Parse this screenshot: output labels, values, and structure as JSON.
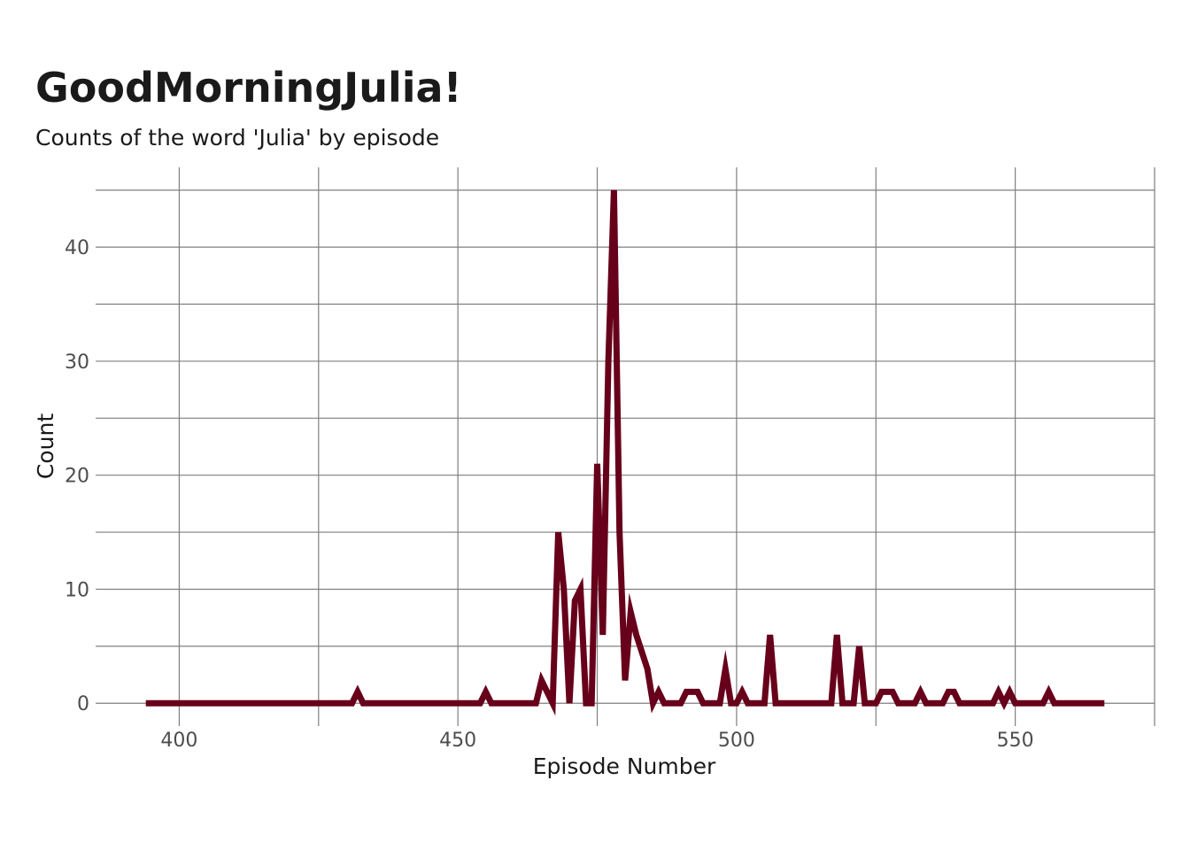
{
  "title": "GoodMorningJulia!",
  "subtitle": "Counts of the word 'Julia' by episode",
  "colors": {
    "line": "#67001a",
    "grid": "#7f7f7f",
    "tick_text": "#4d4d4d",
    "text": "#1a1a1a",
    "background": "#ffffff"
  },
  "chart_data": {
    "type": "line",
    "title": "GoodMorningJulia!",
    "subtitle": "Counts of the word 'Julia' by episode",
    "xlabel": "Episode Number",
    "ylabel": "Count",
    "xlim": [
      385,
      575
    ],
    "ylim": [
      -2,
      47
    ],
    "x_ticks": [
      400,
      450,
      500,
      550
    ],
    "x_minor_ticks": [
      425,
      475,
      525,
      575
    ],
    "y_ticks": [
      0,
      10,
      20,
      30,
      40
    ],
    "y_minor_ticks": [
      5,
      15,
      25,
      35,
      45
    ],
    "grid": true,
    "legend": "none",
    "series": [
      {
        "x": [
          394,
          431,
          432,
          433,
          454,
          455,
          456,
          464,
          465,
          467,
          468,
          469,
          470,
          471,
          472,
          473,
          474,
          475,
          476,
          477,
          478,
          479,
          480,
          481,
          482,
          484,
          485,
          486,
          487,
          490,
          491,
          493,
          494,
          497,
          498,
          499,
          500,
          501,
          502,
          505,
          506,
          507,
          517,
          518,
          519,
          521,
          522,
          523,
          525,
          526,
          528,
          529,
          532,
          533,
          534,
          537,
          538,
          539,
          540,
          546,
          547,
          548,
          549,
          550,
          555,
          556,
          557,
          566
        ],
        "y": [
          0,
          0,
          1,
          0,
          0,
          1,
          0,
          0,
          2,
          0,
          15,
          10,
          0,
          9,
          10,
          0,
          0,
          21,
          6,
          30,
          45,
          15,
          2,
          8,
          6,
          3,
          0,
          1,
          0,
          0,
          1,
          1,
          0,
          0,
          3,
          0,
          0,
          1,
          0,
          0,
          6,
          0,
          0,
          6,
          0,
          0,
          5,
          0,
          0,
          1,
          1,
          0,
          0,
          1,
          0,
          0,
          1,
          1,
          0,
          0,
          1,
          0,
          1,
          0,
          0,
          1,
          0,
          0
        ]
      }
    ]
  }
}
